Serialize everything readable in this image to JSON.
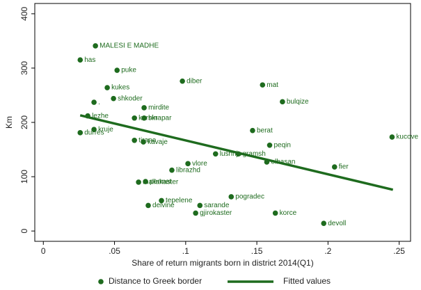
{
  "chart_data": {
    "type": "scatter",
    "xlabel": "Share of return migrants born in district 2014(Q1)",
    "ylabel": "Km",
    "xlim": [
      -0.006,
      0.258
    ],
    "ylim": [
      -19,
      419
    ],
    "xticks": [
      0,
      {
        "value": 0.05,
        "label": ".05"
      },
      {
        "value": 0.1,
        "label": ".1"
      },
      {
        "value": 0.15,
        "label": ".15"
      },
      {
        "value": 0.2,
        "label": ".2"
      },
      {
        "value": 0.25,
        "label": ".25"
      }
    ],
    "yticks": [
      0,
      100,
      200,
      300,
      400
    ],
    "grid": false,
    "series": [
      {
        "name": "Distance to Greek border",
        "color": "#1e6b1e",
        "type": "scatter",
        "labels": [
          "MALESI E MADHE",
          "has",
          "puke",
          "kukes",
          "diber",
          "mat",
          "shkoder",
          "bulqize",
          ".",
          "mirdite",
          "lezhe",
          "kurbin",
          "skrapar",
          "kruje",
          "berat",
          "durres",
          "kucove",
          "peqin",
          "tirane",
          "kavaje",
          "lushnje",
          "gramsh",
          "elbasan",
          "vlore",
          "fier",
          "librazhd",
          "mallakaster",
          "permet",
          "pogradec",
          "tepelene",
          "sarande",
          "delvine",
          "gjirokaster",
          "korce",
          "devoll"
        ],
        "x": [
          0.0366,
          0.0259,
          0.0518,
          0.0449,
          0.0977,
          0.154,
          0.0493,
          0.168,
          0.0356,
          0.0708,
          0.0312,
          0.064,
          0.0708,
          0.0356,
          0.147,
          0.0259,
          0.245,
          0.159,
          0.064,
          0.0703,
          0.121,
          0.137,
          0.157,
          0.1016,
          0.2046,
          0.0903,
          0.0669,
          0.0718,
          0.132,
          0.083,
          0.11,
          0.0737,
          0.107,
          0.163,
          0.197
        ],
        "values": [
          341,
          315,
          296,
          264,
          276,
          269,
          244,
          238,
          237,
          227,
          212,
          208,
          208,
          187,
          185,
          181,
          173,
          158,
          167,
          164,
          142,
          142,
          127,
          124,
          118,
          112,
          90,
          91,
          63,
          56,
          47,
          47,
          33,
          33,
          14
        ]
      },
      {
        "name": "Fitted values",
        "color": "#1e6b1e",
        "type": "line",
        "x": [
          0.0259,
          0.2456
        ],
        "values": [
          213,
          76
        ]
      }
    ]
  }
}
